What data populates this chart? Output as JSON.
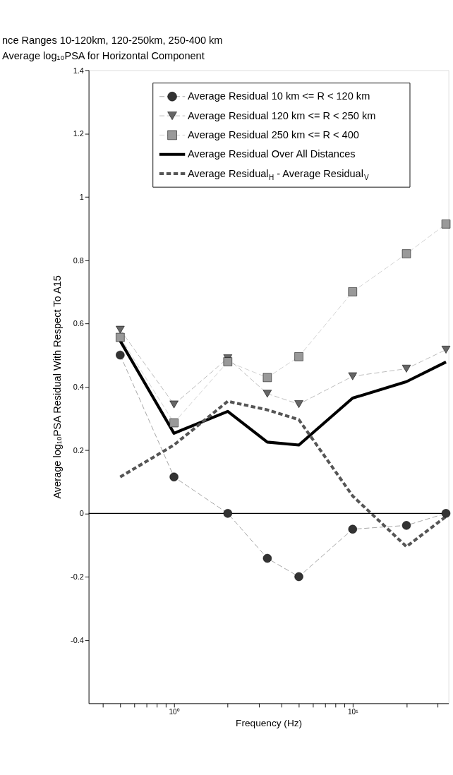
{
  "chart_data": {
    "type": "line",
    "title": "nce Ranges 10-120km, 120-250km, 250-400 km",
    "subtitle": "Average log₁₀PSA for Horizontal Component",
    "xlabel": "Frequency (Hz)",
    "ylabel": "Average log₁₀PSA Residual With Respect To A15",
    "log": "x",
    "x": [
      0.5,
      1,
      2,
      3.33,
      5,
      10,
      20,
      33.3
    ],
    "series": [
      {
        "name": "Average Residual   10 km <= R < 120 km",
        "color": "#333333",
        "marker": "circle",
        "line_style": "dashed",
        "values": [
          0.5,
          0.115,
          0,
          -0.142,
          -0.2,
          -0.05,
          -0.038,
          0
        ]
      },
      {
        "name": "Average Residual 120 km <= R < 250 km",
        "color": "#666666",
        "marker": "triangle",
        "line_style": "dashed",
        "values": [
          0.58,
          0.344,
          0.49,
          0.378,
          0.345,
          0.433,
          0.457,
          0.517
        ]
      },
      {
        "name": "Average Residual 250 km <= R < 400",
        "color": "#999999",
        "marker": "square",
        "line_style": "dashed",
        "values": [
          0.556,
          0.286,
          0.479,
          0.429,
          0.495,
          0.7,
          0.82,
          0.914
        ]
      },
      {
        "name": "Average Residual Over All Distances",
        "color": "#000000",
        "marker": "none",
        "line_style": "solid",
        "values": [
          0.545,
          0.253,
          0.322,
          0.225,
          0.216,
          0.364,
          0.416,
          0.478
        ]
      },
      {
        "name": "Average Residual$_{H}$ - Average Residual$_{V}$",
        "color": "#555555",
        "marker": "none",
        "line_style": "dashed",
        "values": [
          0.115,
          0.216,
          0.354,
          0.327,
          0.296,
          0.055,
          -0.105,
          -0.01
        ]
      }
    ],
    "xlim": [
      0.333,
      34.4
    ],
    "xticks": [
      {
        "value": 0.4,
        "label": null
      },
      {
        "value": 0.5,
        "label": null
      },
      {
        "value": 0.6,
        "label": null
      },
      {
        "value": 0.7,
        "label": null
      },
      {
        "value": 0.8,
        "label": null
      },
      {
        "value": 0.9,
        "label": null
      },
      {
        "value": 1,
        "label": "10⁰"
      },
      {
        "value": 2,
        "label": null
      },
      {
        "value": 3,
        "label": null
      },
      {
        "value": 4,
        "label": null
      },
      {
        "value": 5,
        "label": null
      },
      {
        "value": 6,
        "label": null
      },
      {
        "value": 7,
        "label": null
      },
      {
        "value": 8,
        "label": null
      },
      {
        "value": 9,
        "label": null
      },
      {
        "value": 10,
        "label": "10¹"
      },
      {
        "value": 20,
        "label": null
      },
      {
        "value": 30,
        "label": null
      }
    ],
    "ylim": [
      -0.6,
      1.4
    ],
    "yticks": [
      -0.4,
      -0.2,
      0,
      0.2,
      0.4,
      0.6,
      0.8,
      1,
      1.2,
      1.4
    ],
    "ref_lines": [
      {
        "axis": "y",
        "value": 0,
        "label": null,
        "color": "#000000",
        "line_style": "solid"
      }
    ],
    "grid": false,
    "legend": "top"
  }
}
